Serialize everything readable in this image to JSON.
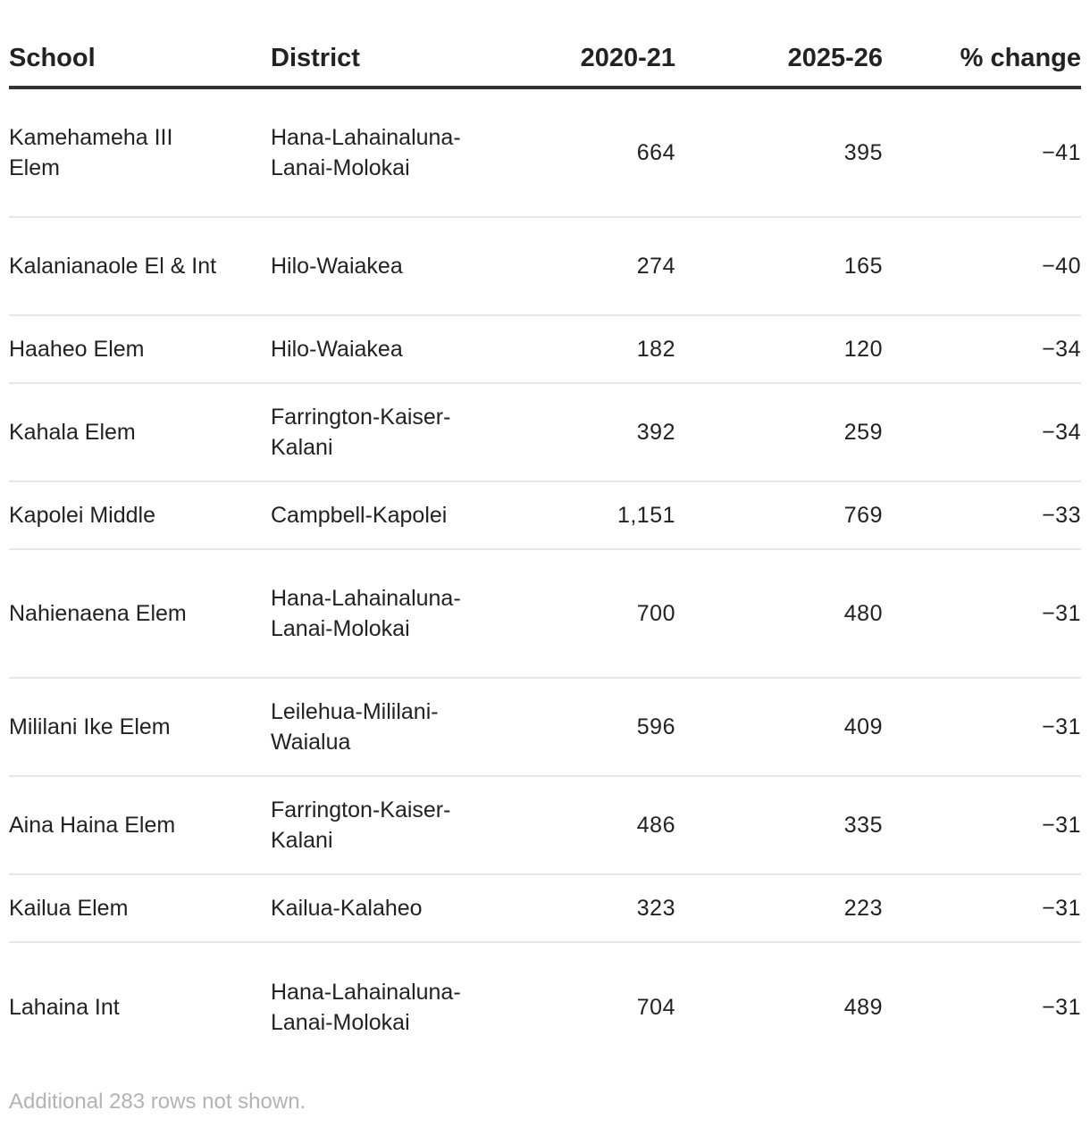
{
  "table": {
    "headers": {
      "school": "School",
      "district": "District",
      "y2020": "2020-21",
      "y2025": "2025-26",
      "pct": "% change"
    },
    "rows": [
      {
        "school": "Kamehameha III Elem",
        "district": "Hana-Lahainaluna-Lanai-Molokai",
        "y2020": "664",
        "y2025": "395",
        "pct": "−41"
      },
      {
        "school": "Kalanianaole El & Int",
        "district": "Hilo-Waiakea",
        "y2020": "274",
        "y2025": "165",
        "pct": "−40"
      },
      {
        "school": "Haaheo Elem",
        "district": "Hilo-Waiakea",
        "y2020": "182",
        "y2025": "120",
        "pct": "−34"
      },
      {
        "school": "Kahala Elem",
        "district": "Farrington-Kaiser-Kalani",
        "y2020": "392",
        "y2025": "259",
        "pct": "−34"
      },
      {
        "school": "Kapolei Middle",
        "district": "Campbell-Kapolei",
        "y2020": "1,151",
        "y2025": "769",
        "pct": "−33"
      },
      {
        "school": "Nahienaena Elem",
        "district": "Hana-Lahainaluna-Lanai-Molokai",
        "y2020": "700",
        "y2025": "480",
        "pct": "−31"
      },
      {
        "school": "Mililani Ike Elem",
        "district": "Leilehua-Mililani-Waialua",
        "y2020": "596",
        "y2025": "409",
        "pct": "−31"
      },
      {
        "school": "Aina Haina Elem",
        "district": "Farrington-Kaiser-Kalani",
        "y2020": "486",
        "y2025": "335",
        "pct": "−31"
      },
      {
        "school": "Kailua Elem",
        "district": "Kailua-Kalaheo",
        "y2020": "323",
        "y2025": "223",
        "pct": "−31"
      },
      {
        "school": "Lahaina Int",
        "district": "Hana-Lahainaluna-Lanai-Molokai",
        "y2020": "704",
        "y2025": "489",
        "pct": "−31"
      }
    ]
  },
  "footer": {
    "note": "Additional 283 rows not shown."
  }
}
